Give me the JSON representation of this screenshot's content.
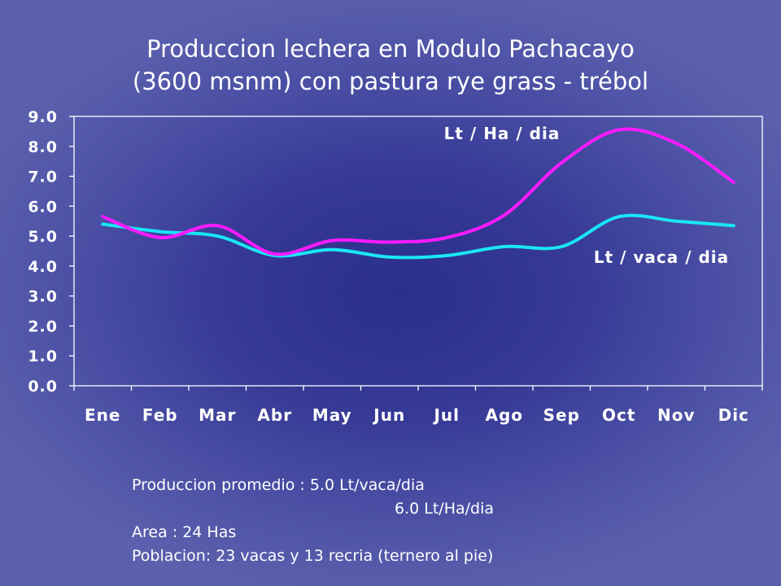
{
  "title": {
    "line1": "Produccion lechera en Modulo Pachacayo",
    "line2": "(3600 msnm) con pastura rye grass - trébol"
  },
  "chart_data": {
    "type": "line",
    "title": "Produccion lechera en Modulo Pachacayo (3600 msnm) con pastura rye grass - trébol",
    "xlabel": "",
    "ylabel": "",
    "ylim": [
      0,
      9
    ],
    "yticks": [
      "0.0",
      "1.0",
      "2.0",
      "3.0",
      "4.0",
      "5.0",
      "6.0",
      "7.0",
      "8.0",
      "9.0"
    ],
    "categories": [
      "Ene",
      "Feb",
      "Mar",
      "Abr",
      "May",
      "Jun",
      "Jul",
      "Ago",
      "Sep",
      "Oct",
      "Nov",
      "Dic"
    ],
    "grid": false,
    "series": [
      {
        "name": "Lt / Ha / dia",
        "color": "#ff1aff",
        "values": [
          5.65,
          4.95,
          5.35,
          4.4,
          4.85,
          4.8,
          4.95,
          5.7,
          7.45,
          8.55,
          8.1,
          6.8
        ]
      },
      {
        "name": "Lt / vaca / dia",
        "color": "#1ae6f5",
        "values": [
          5.4,
          5.15,
          5.0,
          4.35,
          4.55,
          4.3,
          4.35,
          4.65,
          4.65,
          5.65,
          5.5,
          5.35
        ]
      }
    ]
  },
  "notes": {
    "line1": "Produccion promedio :  5.0 Lt/vaca/dia",
    "line2": "6.0 Lt/Ha/dia",
    "line3": "Area : 24 Has",
    "line4": "Poblacion: 23 vacas y 13 recria (ternero al pie)"
  }
}
